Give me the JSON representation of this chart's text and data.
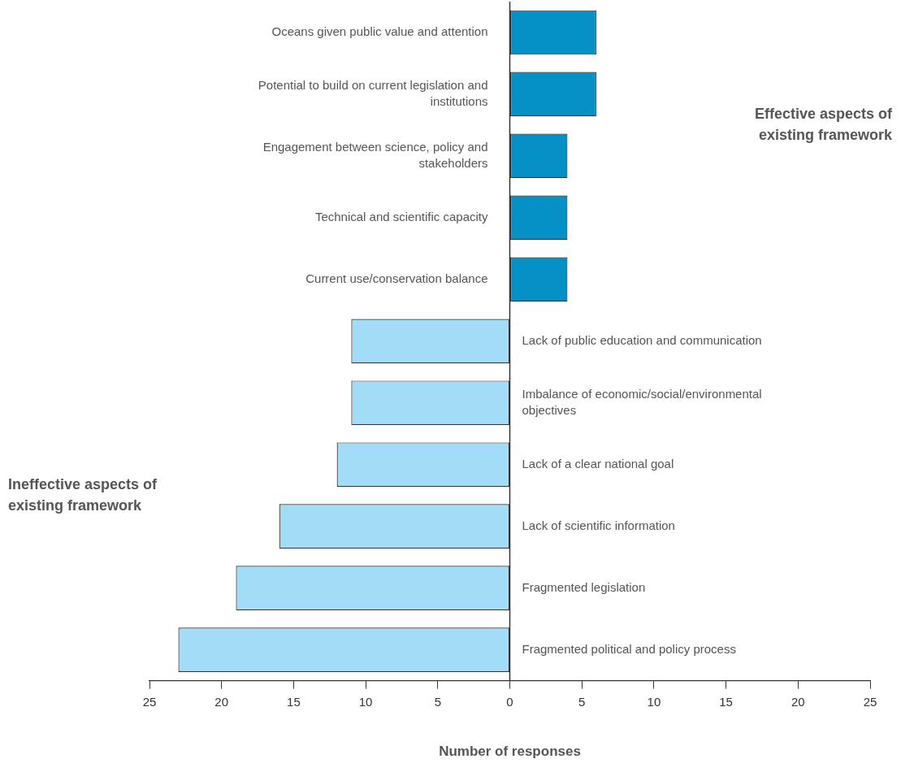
{
  "chart_data": {
    "type": "bar",
    "orientation": "horizontal",
    "xlabel": "Number of responses",
    "categories": [
      "Oceans given public value and attention",
      "Potential to build on current legislation and institutions",
      "Engagement between science, policy and stakeholders",
      "Technical and scientific capacity",
      "Current use/conservation balance",
      "Lack of public education and communication",
      "Imbalance of economic/social/environmental objectives",
      "Lack of a clear national goal",
      "Lack of scientific information",
      "Fragmented legislation",
      "Fragmented political and policy process"
    ],
    "values": [
      6,
      6,
      4,
      4,
      4,
      -11,
      -11,
      -12,
      -16,
      -19,
      -23
    ],
    "colors": [
      "#0590c6",
      "#0590c6",
      "#0590c6",
      "#0590c6",
      "#0590c6",
      "#a2dcf7",
      "#a2dcf7",
      "#a2dcf7",
      "#a2dcf7",
      "#a2dcf7",
      "#a2dcf7"
    ],
    "xlim": [
      -25,
      25
    ],
    "xticks": [
      {
        "value": -25,
        "label": "25"
      },
      {
        "value": -20,
        "label": "20"
      },
      {
        "value": -15,
        "label": "15"
      },
      {
        "value": -10,
        "label": "10"
      },
      {
        "value": -5,
        "label": "5"
      },
      0,
      5,
      10,
      15,
      20,
      25
    ],
    "annotations": [
      "Effective aspects of existing framework",
      "Ineffective aspects of existing framework"
    ],
    "grid": false,
    "legend": false
  }
}
